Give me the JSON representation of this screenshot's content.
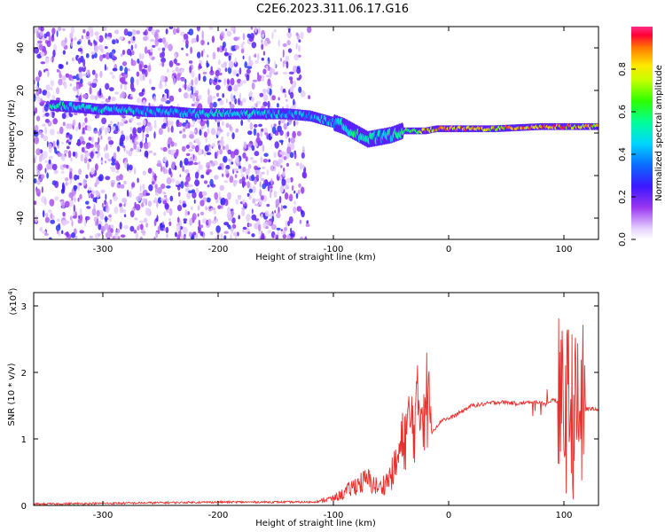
{
  "title": "C2E6.2023.311.06.17.G16",
  "chart_data": [
    {
      "type": "heatmap",
      "xlabel": "Height of straight line (km)",
      "ylabel": "Frequency (Hz)",
      "xlim": [
        -360,
        130
      ],
      "ylim": [
        -50,
        50
      ],
      "xticks": [
        "-300",
        "-200",
        "-100",
        "0",
        "100"
      ],
      "yticks": [
        "40",
        "20",
        "0",
        "-20",
        "-40"
      ],
      "colorbar": {
        "label": "Normalized spectral amplitude",
        "range": [
          0.0,
          1.0
        ],
        "ticks": [
          "0.0",
          "0.2",
          "0.4",
          "0.6",
          "0.8"
        ]
      },
      "ridge": {
        "x": [
          -345,
          -320,
          -300,
          -280,
          -260,
          -240,
          -220,
          -200,
          -180,
          -160,
          -140,
          -120,
          -100,
          -90,
          -80,
          -70,
          -60,
          -50,
          -40,
          -30,
          -20,
          -10,
          0,
          20,
          40,
          60,
          80,
          100,
          120,
          130
        ],
        "y": [
          13,
          12,
          11,
          11,
          10,
          10,
          9,
          9,
          9,
          9,
          9,
          8,
          5,
          3,
          0,
          -3,
          -2,
          -1,
          1,
          1,
          1,
          2,
          2,
          2,
          2,
          2.5,
          3,
          3,
          3,
          3
        ],
        "amplitude": [
          0.55,
          0.5,
          0.5,
          0.5,
          0.45,
          0.45,
          0.5,
          0.5,
          0.5,
          0.5,
          0.45,
          0.45,
          0.5,
          0.5,
          0.55,
          0.55,
          0.5,
          0.55,
          0.6,
          0.7,
          0.85,
          0.9,
          0.95,
          0.9,
          0.85,
          0.9,
          0.95,
          0.9,
          0.85,
          0.85
        ]
      }
    },
    {
      "type": "line",
      "xlabel": "Height of straight line (km)",
      "ylabel": "SNR (10 * v/v)",
      "y_multiplier": "(x10",
      "y_multiplier_exp": "4",
      "y_multiplier_close": ")",
      "xlim": [
        -360,
        130
      ],
      "ylim": [
        0,
        3.2
      ],
      "xticks": [
        "-300",
        "-200",
        "-100",
        "0",
        "100"
      ],
      "yticks": [
        "0",
        "1",
        "2",
        "3"
      ],
      "line_color": "#e8302c",
      "series": [
        {
          "x": [
            -360,
            -300,
            -250,
            -200,
            -150,
            -120,
            -100,
            -90,
            -80,
            -70,
            -60,
            -50,
            -45,
            -40,
            -35,
            -30,
            -25,
            -20,
            -15,
            -10,
            -5,
            0,
            10,
            20,
            30,
            40,
            50,
            60,
            70,
            80,
            85,
            90,
            95,
            100,
            105,
            110,
            115,
            120,
            130
          ],
          "y": [
            0.02,
            0.03,
            0.04,
            0.05,
            0.05,
            0.05,
            0.08,
            0.15,
            0.25,
            0.3,
            0.2,
            0.35,
            0.5,
            0.75,
            0.95,
            1.0,
            1.2,
            1.3,
            1.1,
            1.2,
            1.3,
            1.3,
            1.4,
            1.5,
            1.52,
            1.55,
            1.55,
            1.53,
            1.55,
            1.55,
            1.5,
            1.6,
            1.55,
            1.4,
            1.5,
            1.3,
            1.45,
            1.45,
            1.45
          ]
        }
      ]
    }
  ]
}
